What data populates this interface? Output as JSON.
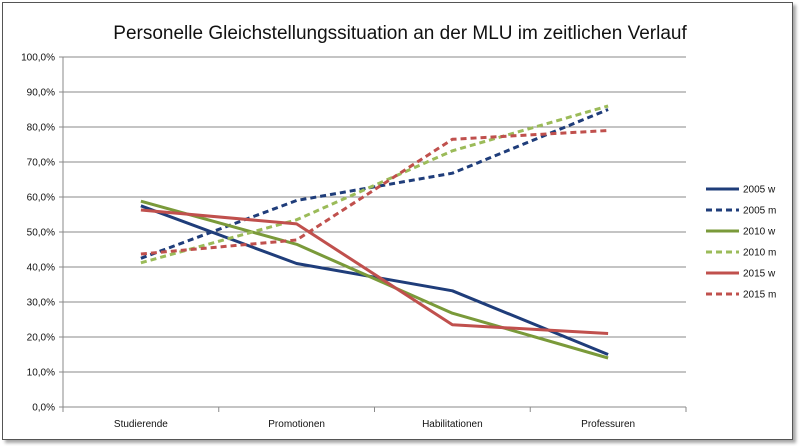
{
  "chart_data": {
    "type": "line",
    "title": "Personelle Gleichstellungssituation an der MLU im  zeitlichen Verlauf",
    "xlabel": "",
    "ylabel": "",
    "categories": [
      "Studierende",
      "Promotionen",
      "Habilitationen",
      "Professuren"
    ],
    "yticks": [
      "0,0%",
      "10,0%",
      "20,0%",
      "30,0%",
      "40,0%",
      "50,0%",
      "60,0%",
      "70,0%",
      "80,0%",
      "90,0%",
      "100,0%"
    ],
    "ylim": [
      0,
      100
    ],
    "grid": "horizontal",
    "legend_position": "right",
    "series": [
      {
        "name": "2005 w",
        "values": [
          57.5,
          41.0,
          33.2,
          15.0
        ],
        "color": "#1f3d7a",
        "dashed": false
      },
      {
        "name": "2005 m",
        "values": [
          42.5,
          59.0,
          66.8,
          85.0
        ],
        "color": "#1f3d7a",
        "dashed": true
      },
      {
        "name": "2010 w",
        "values": [
          58.8,
          46.5,
          26.8,
          14.0
        ],
        "color": "#7a9a3a",
        "dashed": false
      },
      {
        "name": "2010 m",
        "values": [
          41.2,
          53.5,
          73.2,
          86.0
        ],
        "color": "#9bbb59",
        "dashed": true
      },
      {
        "name": "2015 w",
        "values": [
          56.3,
          52.3,
          23.5,
          21.0
        ],
        "color": "#c0504d",
        "dashed": false
      },
      {
        "name": "2015 m",
        "values": [
          43.7,
          47.7,
          76.5,
          79.0
        ],
        "color": "#c0504d",
        "dashed": true
      }
    ]
  }
}
